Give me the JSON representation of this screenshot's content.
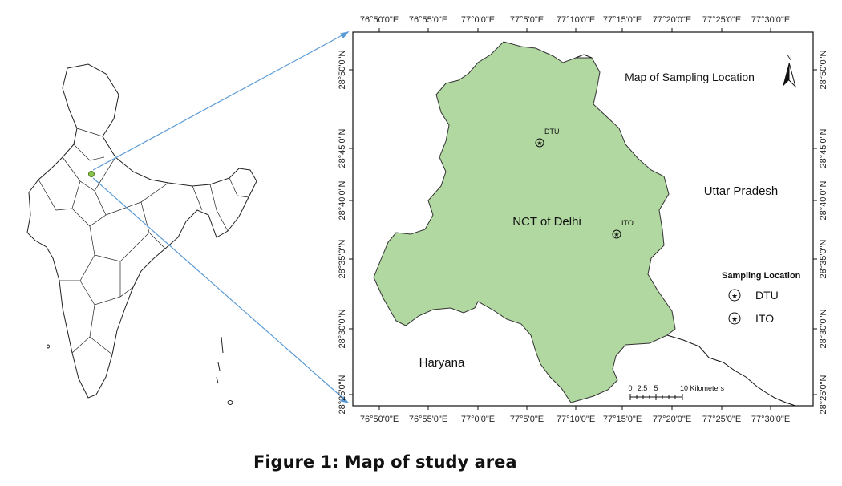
{
  "figure": {
    "caption": "Figure 1: Map of study area"
  },
  "map": {
    "title": "Map of Sampling Location",
    "north_label": "N",
    "top_ticks": [
      "76°50'0\"E",
      "76°55'0\"E",
      "77°0'0\"E",
      "77°5'0\"E",
      "77°10'0\"E",
      "77°15'0\"E",
      "77°20'0\"E",
      "77°25'0\"E",
      "77°30'0\"E"
    ],
    "bottom_ticks": [
      "76°50'0\"E",
      "76°55'0\"E",
      "77°0'0\"E",
      "77°5'0\"E",
      "77°10'0\"E",
      "77°15'0\"E",
      "77°20'0\"E",
      "77°25'0\"E",
      "77°30'0\"E"
    ],
    "left_ticks": [
      "28°50'0\"N",
      "28°45'0\"N",
      "28°40'0\"N",
      "28°35'0\"N",
      "28°30'0\"N",
      "28°25'0\"N"
    ],
    "right_ticks": [
      "28°50'0\"N",
      "28°45'0\"N",
      "28°40'0\"N",
      "28°35'0\"N",
      "28°30'0\"N",
      "28°25'0\"N"
    ],
    "regions": {
      "delhi": "NCT of Delhi",
      "uttar_pradesh": "Uttar Pradesh",
      "haryana": "Haryana"
    },
    "locations": [
      {
        "name": "DTU"
      },
      {
        "name": "ITO"
      }
    ],
    "legend": {
      "title": "Sampling Location",
      "items": [
        "DTU",
        "ITO"
      ]
    },
    "scale_bar": {
      "ticks": [
        "0",
        "2.5",
        "5",
        "10 Kilometers"
      ]
    },
    "colors": {
      "delhi_fill": "#b0d8a0",
      "connector": "#5b9bd5",
      "study_marker": "#8bc34a"
    }
  }
}
